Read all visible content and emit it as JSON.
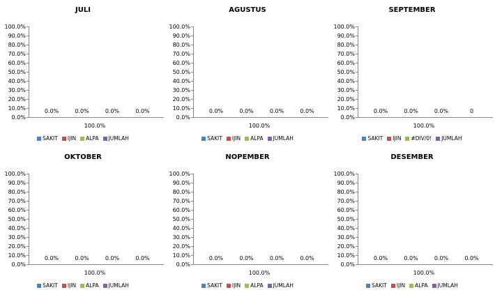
{
  "chart_data": [
    {
      "type": "bar",
      "title": "JULI",
      "categories": [
        "100.0%"
      ],
      "series": [
        {
          "name": "SAKIT",
          "values": [
            0
          ],
          "label": "0.0%",
          "color": "#4F81BD"
        },
        {
          "name": "IJIN",
          "values": [
            0
          ],
          "label": "0.0%",
          "color": "#C0504D"
        },
        {
          "name": "ALPA",
          "values": [
            0
          ],
          "label": "0.0%",
          "color": "#9BBB59"
        },
        {
          "name": "JUMLAH",
          "values": [
            0
          ],
          "label": "0.0%",
          "color": "#8064A2"
        }
      ],
      "ylim": [
        0,
        1
      ],
      "yticks": [
        "0.0%",
        "10.0%",
        "20.0%",
        "30.0%",
        "40.0%",
        "50.0%",
        "60.0%",
        "70.0%",
        "80.0%",
        "90.0%",
        "100.0%"
      ],
      "grid": false,
      "legend": "bottom"
    },
    {
      "type": "bar",
      "title": "AGUSTUS",
      "categories": [
        "100.0%"
      ],
      "series": [
        {
          "name": "SAKIT",
          "values": [
            0
          ],
          "label": "0.0%",
          "color": "#4F81BD"
        },
        {
          "name": "IJIN",
          "values": [
            0
          ],
          "label": "0.0%",
          "color": "#C0504D"
        },
        {
          "name": "ALPA",
          "values": [
            0
          ],
          "label": "0.0%",
          "color": "#9BBB59"
        },
        {
          "name": "JUMLAH",
          "values": [
            0
          ],
          "label": "0.0%",
          "color": "#8064A2"
        }
      ],
      "ylim": [
        0,
        1
      ],
      "yticks": [
        "0.0%",
        "10.0%",
        "20.0%",
        "30.0%",
        "40.0%",
        "50.0%",
        "60.0%",
        "70.0%",
        "80.0%",
        "90.0%",
        "100.0%"
      ],
      "grid": false,
      "legend": "bottom"
    },
    {
      "type": "bar",
      "title": "SEPTEMBER",
      "categories": [
        "100.0%"
      ],
      "series": [
        {
          "name": "SAKIT",
          "values": [
            0
          ],
          "label": "0.0%",
          "color": "#4F81BD"
        },
        {
          "name": "IJIN",
          "values": [
            0
          ],
          "label": "0.0%",
          "color": "#C0504D"
        },
        {
          "name": "#DIV/0!",
          "values": [
            0
          ],
          "label": "0.0%",
          "color": "#9BBB59"
        },
        {
          "name": "JUMLAH",
          "values": [
            0
          ],
          "label": "0",
          "color": "#8064A2"
        }
      ],
      "ylim": [
        0,
        1
      ],
      "yticks": [
        "0.0%",
        "10.0%",
        "20.0%",
        "30.0%",
        "40.0%",
        "50.0%",
        "60.0%",
        "70.0%",
        "80.0%",
        "90.0%",
        "100.0%"
      ],
      "grid": false,
      "legend": "bottom"
    },
    {
      "type": "bar",
      "title": "OKTOBER",
      "categories": [
        "100.0%"
      ],
      "series": [
        {
          "name": "SAKIT",
          "values": [
            0
          ],
          "label": "0.0%",
          "color": "#4F81BD"
        },
        {
          "name": "IJIN",
          "values": [
            0
          ],
          "label": "0.0%",
          "color": "#C0504D"
        },
        {
          "name": "ALPA",
          "values": [
            0
          ],
          "label": "0.0%",
          "color": "#9BBB59"
        },
        {
          "name": "JUMLAH",
          "values": [
            0
          ],
          "label": "0.0%",
          "color": "#8064A2"
        }
      ],
      "ylim": [
        0,
        1
      ],
      "yticks": [
        "0.0%",
        "10.0%",
        "20.0%",
        "30.0%",
        "40.0%",
        "50.0%",
        "60.0%",
        "70.0%",
        "80.0%",
        "90.0%",
        "100.0%"
      ],
      "grid": false,
      "legend": "bottom"
    },
    {
      "type": "bar",
      "title": "NOPEMBER",
      "categories": [
        "100.0%"
      ],
      "series": [
        {
          "name": "SAKIT",
          "values": [
            0
          ],
          "label": "0.0%",
          "color": "#4F81BD"
        },
        {
          "name": "IJIN",
          "values": [
            0
          ],
          "label": "0.0%",
          "color": "#C0504D"
        },
        {
          "name": "ALPA",
          "values": [
            0
          ],
          "label": "0.0%",
          "color": "#9BBB59"
        },
        {
          "name": "JUMLAH",
          "values": [
            0
          ],
          "label": "0.0%",
          "color": "#8064A2"
        }
      ],
      "ylim": [
        0,
        1
      ],
      "yticks": [
        "0.0%",
        "10.0%",
        "20.0%",
        "30.0%",
        "40.0%",
        "50.0%",
        "60.0%",
        "70.0%",
        "80.0%",
        "90.0%",
        "100.0%"
      ],
      "grid": false,
      "legend": "bottom"
    },
    {
      "type": "bar",
      "title": "DESEMBER",
      "categories": [
        "100.0%"
      ],
      "series": [
        {
          "name": "SAKIT",
          "values": [
            0
          ],
          "label": "0.0%",
          "color": "#4F81BD"
        },
        {
          "name": "IJIN",
          "values": [
            0
          ],
          "label": "0.0%",
          "color": "#C0504D"
        },
        {
          "name": "ALPA",
          "values": [
            0
          ],
          "label": "0.0%",
          "color": "#9BBB59"
        },
        {
          "name": "JUMLAH",
          "values": [
            0
          ],
          "label": "0.0%",
          "color": "#8064A2"
        }
      ],
      "ylim": [
        0,
        1
      ],
      "yticks": [
        "0.0%",
        "10.0%",
        "20.0%",
        "30.0%",
        "40.0%",
        "50.0%",
        "60.0%",
        "70.0%",
        "80.0%",
        "90.0%",
        "100.0%"
      ],
      "grid": false,
      "legend": "bottom"
    }
  ]
}
